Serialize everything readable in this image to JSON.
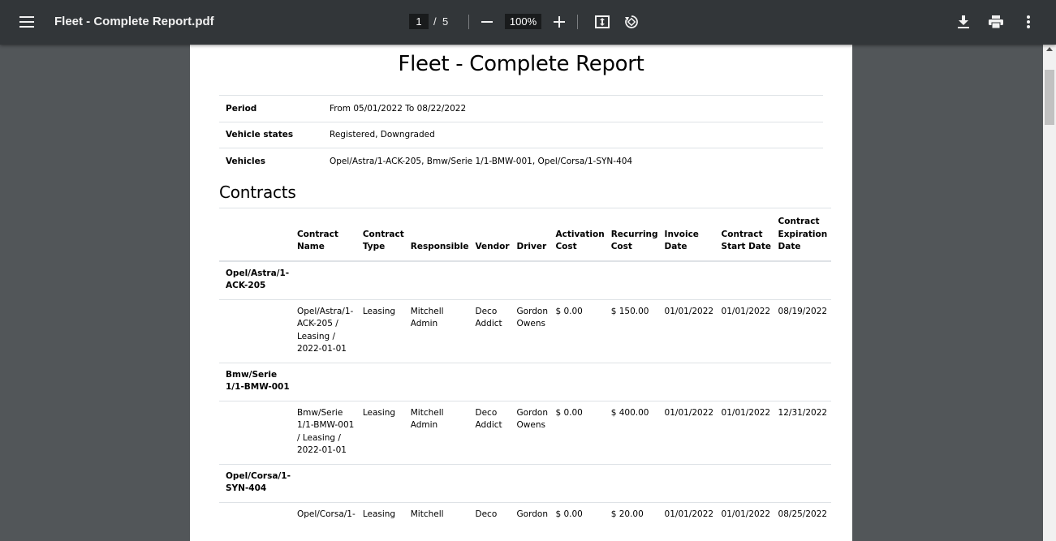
{
  "toolbar": {
    "title": "Fleet - Complete Report.pdf",
    "page_current": "1",
    "page_separator": "/",
    "page_total": "5",
    "zoom": "100%",
    "icons": [
      "menu-icon",
      "minus-icon",
      "plus-icon",
      "fit-to-page-icon",
      "rotate-icon",
      "download-icon",
      "print-icon",
      "more-vert-icon"
    ]
  },
  "report": {
    "title": "Fleet - Complete Report",
    "info": [
      {
        "label": "Period",
        "value": "From 05/01/2022 To 08/22/2022"
      },
      {
        "label": "Vehicle states",
        "value": "Registered, Downgraded"
      },
      {
        "label": "Vehicles",
        "value": "Opel/Astra/1-ACK-205, Bmw/Serie 1/1-BMW-001, Opel/Corsa/1-SYN-404"
      }
    ],
    "contracts_heading": "Contracts",
    "columns": [
      "Contract Name",
      "Contract Type",
      "Responsible",
      "Vendor",
      "Driver",
      "Activation Cost",
      "Recurring Cost",
      "Invoice Date",
      "Contract Start Date",
      "Contract Expiration Date"
    ],
    "groups": [
      {
        "vehicle": "Opel/Astra/1-ACK-205",
        "row": {
          "name": "Opel/Astra/1-ACK-205 / Leasing / 2022-01-01",
          "type": "Leasing",
          "responsible": "Mitchell Admin",
          "vendor": "Deco Addict",
          "driver": "Gordon Owens",
          "activation": "$ 0.00",
          "recurring": "$ 150.00",
          "invoice": "01/01/2022",
          "start": "01/01/2022",
          "expiration": "08/19/2022"
        }
      },
      {
        "vehicle": "Bmw/Serie 1/1-BMW-001",
        "row": {
          "name": "Bmw/Serie 1/1-BMW-001 / Leasing / 2022-01-01",
          "type": "Leasing",
          "responsible": "Mitchell Admin",
          "vendor": "Deco Addict",
          "driver": "Gordon Owens",
          "activation": "$ 0.00",
          "recurring": "$ 400.00",
          "invoice": "01/01/2022",
          "start": "01/01/2022",
          "expiration": "12/31/2022"
        }
      },
      {
        "vehicle": "Opel/Corsa/1-SYN-404",
        "row": {
          "name": "Opel/Corsa/1-",
          "type": "Leasing",
          "responsible": "Mitchell",
          "vendor": "Deco",
          "driver": "Gordon",
          "activation": "$ 0.00",
          "recurring": "$ 20.00",
          "invoice": "01/01/2022",
          "start": "01/01/2022",
          "expiration": "08/25/2022"
        }
      }
    ]
  }
}
